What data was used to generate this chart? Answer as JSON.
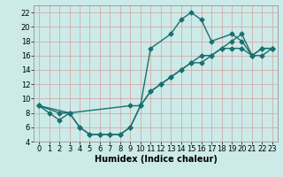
{
  "xlabel": "Humidex (Indice chaleur)",
  "background_color": "#cceae8",
  "grid_color": "#d4a0a0",
  "line_color": "#1a7070",
  "xlim": [
    -0.5,
    23.5
  ],
  "ylim": [
    4,
    23
  ],
  "xticks": [
    0,
    1,
    2,
    3,
    4,
    5,
    6,
    7,
    8,
    9,
    10,
    11,
    12,
    13,
    14,
    15,
    16,
    17,
    18,
    19,
    20,
    21,
    22,
    23
  ],
  "yticks": [
    4,
    6,
    8,
    10,
    12,
    14,
    16,
    18,
    20,
    22
  ],
  "line1_x": [
    0,
    1,
    2,
    3,
    4,
    5,
    6,
    7,
    8,
    9,
    10,
    11,
    13,
    14,
    15,
    16,
    17,
    19,
    20,
    21,
    22,
    23
  ],
  "line1_y": [
    9,
    8,
    7,
    8,
    6,
    5,
    5,
    5,
    5,
    6,
    9,
    17,
    19,
    21,
    22,
    21,
    18,
    19,
    18,
    16,
    17,
    17
  ],
  "line2_x": [
    0,
    2,
    3,
    9,
    10,
    11,
    12,
    13,
    14,
    15,
    16,
    17,
    18,
    19,
    20,
    21,
    22,
    23
  ],
  "line2_y": [
    9,
    8,
    8,
    9,
    9,
    11,
    12,
    13,
    14,
    15,
    16,
    16,
    17,
    17,
    17,
    16,
    17,
    17
  ],
  "line3_x": [
    0,
    3,
    4,
    5,
    6,
    7,
    8,
    9,
    10,
    11,
    12,
    13,
    14,
    15,
    16,
    17,
    18,
    19,
    20,
    21,
    22,
    23
  ],
  "line3_y": [
    9,
    8,
    6,
    5,
    5,
    5,
    5,
    6,
    9,
    11,
    12,
    13,
    14,
    15,
    15,
    16,
    17,
    18,
    19,
    16,
    16,
    17
  ],
  "marker": "D",
  "markersize": 2.5,
  "linewidth": 1.0,
  "xlabel_fontsize": 7,
  "tick_fontsize": 6
}
